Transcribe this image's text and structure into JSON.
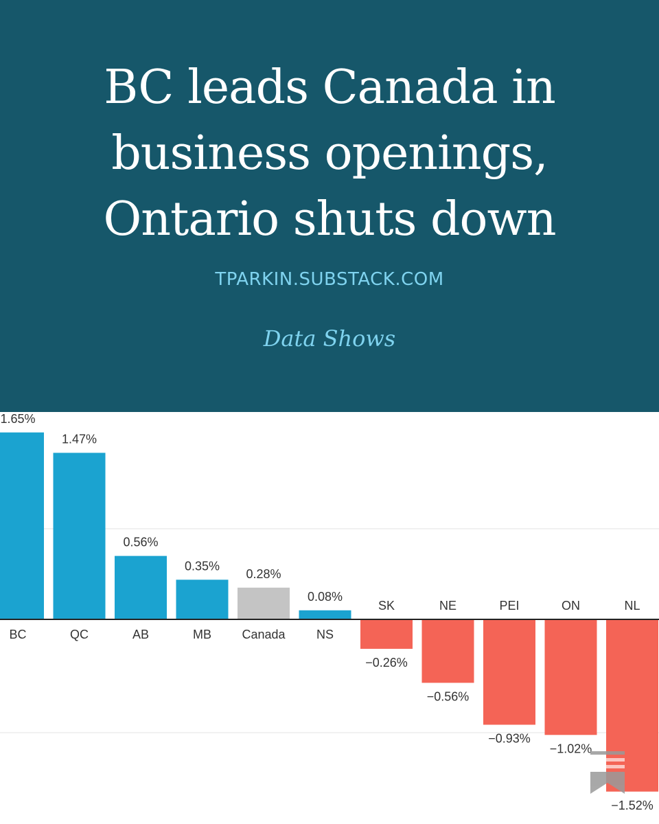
{
  "header": {
    "title_lines": [
      "BC leads Canada in",
      "business openings,",
      "Ontario shuts down"
    ],
    "site": "TPARKIN.SUBSTACK.COM",
    "tagline": "Data Shows"
  },
  "colors": {
    "header_bg": "#16576a",
    "accent_text": "#7fd3ef",
    "positive": "#1ba3d0",
    "negative": "#f46456",
    "national": "#c4c4c4"
  },
  "icons": [
    "substack-bookmark-icon"
  ],
  "chart_data": {
    "type": "bar",
    "categories": [
      "BC",
      "QC",
      "AB",
      "MB",
      "Canada",
      "NS",
      "SK",
      "NE",
      "PEI",
      "ON",
      "NL"
    ],
    "values": [
      1.65,
      1.47,
      0.56,
      0.35,
      0.28,
      0.08,
      -0.26,
      -0.56,
      -0.93,
      -1.02,
      -1.52
    ],
    "labels": [
      "1.65%",
      "1.47%",
      "0.56%",
      "0.35%",
      "0.28%",
      "0.08%",
      "−0.26%",
      "−0.56%",
      "−0.93%",
      "−1.02%",
      "−1.52%"
    ],
    "highlight_category": "Canada",
    "title": "",
    "xlabel": "",
    "ylabel": "",
    "ylim": [
      -1.6,
      1.8
    ],
    "grid": true,
    "legend": "none"
  }
}
